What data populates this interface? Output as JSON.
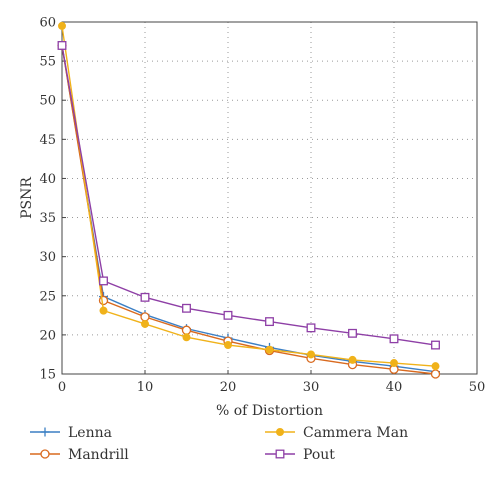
{
  "chart_data": {
    "type": "line",
    "xlabel": "% of Distortion",
    "ylabel": "PSNR",
    "xlim": [
      0,
      50
    ],
    "ylim": [
      15,
      60
    ],
    "xticks": [
      0,
      10,
      20,
      30,
      40,
      50
    ],
    "yticks": [
      15,
      20,
      25,
      30,
      35,
      40,
      45,
      50,
      55,
      60
    ],
    "grid": true,
    "legend_position": "bottom",
    "x": [
      0,
      5,
      10,
      15,
      20,
      25,
      30,
      35,
      40,
      45
    ],
    "series": [
      {
        "name": "Lenna",
        "color": "#3b7fc4",
        "marker": "plus",
        "values": [
          57.0,
          24.9,
          22.6,
          20.8,
          19.6,
          18.4,
          17.4,
          16.6,
          16.0,
          15.3
        ]
      },
      {
        "name": "Mandrill",
        "color": "#d96a1f",
        "marker": "circle",
        "values": [
          57.0,
          24.4,
          22.3,
          20.6,
          19.2,
          18.0,
          17.0,
          16.2,
          15.6,
          15.0
        ]
      },
      {
        "name": "Cammera Man",
        "color": "#f0b21a",
        "marker": "filled-circle",
        "values": [
          59.5,
          23.1,
          21.4,
          19.7,
          18.7,
          18.1,
          17.5,
          16.8,
          16.4,
          16.0
        ]
      },
      {
        "name": "Pout",
        "color": "#8e3fa6",
        "marker": "square",
        "values": [
          57.0,
          26.9,
          24.8,
          23.4,
          22.5,
          21.7,
          20.9,
          20.2,
          19.5,
          18.7
        ]
      }
    ]
  }
}
